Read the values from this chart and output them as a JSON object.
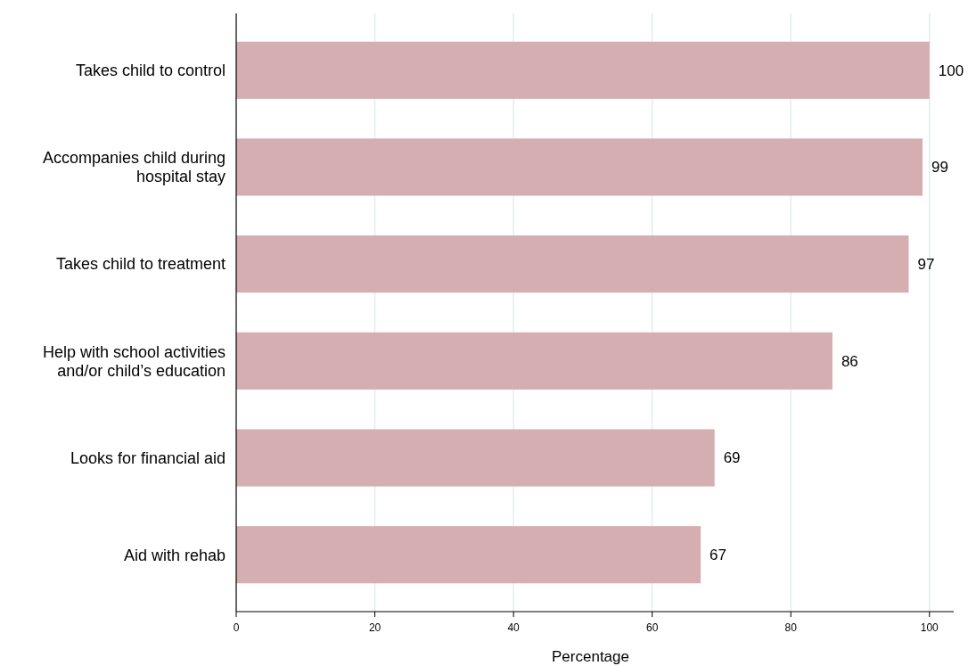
{
  "chart_data": {
    "type": "bar",
    "orientation": "horizontal",
    "xlabel": "Percentage",
    "categories": [
      "Takes child to control",
      "Accompanies child during hospital stay",
      "Takes child to treatment",
      "Help with school activities and/or child’s education",
      "Looks for financial aid",
      "Aid with rehab"
    ],
    "values": [
      100,
      99,
      97,
      86,
      69,
      67
    ],
    "color": "#d4aeb0",
    "xlim": [
      0,
      103.5
    ],
    "xticks": [
      0,
      20,
      40,
      60,
      80,
      100
    ],
    "grid": "x",
    "data_labels": true
  }
}
